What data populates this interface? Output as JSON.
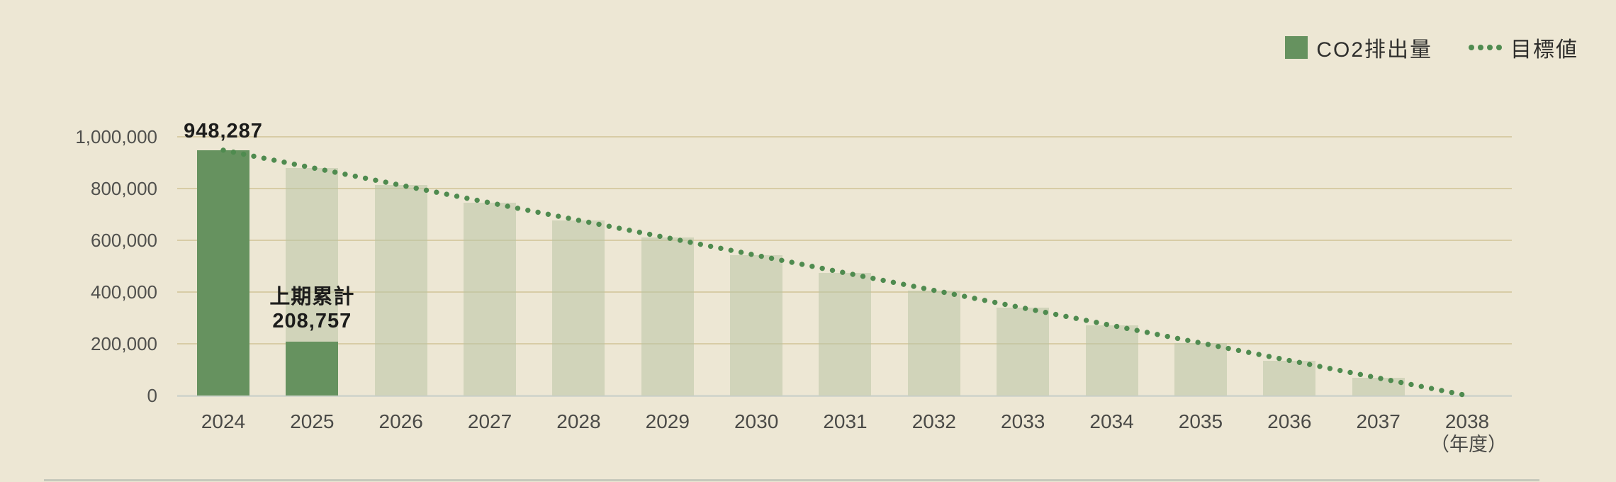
{
  "page": {
    "background": "#EDE7D4"
  },
  "legend": {
    "items": [
      {
        "label": "CO2排出量",
        "swatch": "square",
        "color": "#66925F"
      },
      {
        "label": "目標値",
        "swatch": "dotted-line",
        "color": "#4F8B4F"
      }
    ]
  },
  "chart_data": {
    "type": "bar",
    "title": "",
    "xlabel": "",
    "ylabel": "",
    "x_axis_unit_label": "（年度）",
    "categories": [
      "2024",
      "2025",
      "2026",
      "2027",
      "2028",
      "2029",
      "2030",
      "2031",
      "2032",
      "2033",
      "2034",
      "2035",
      "2036",
      "2037",
      "2038"
    ],
    "ylim": [
      0,
      1000000
    ],
    "y_ticks": [
      {
        "label": "1,000,000",
        "value": 1000000
      },
      {
        "label": "800,000",
        "value": 800000
      },
      {
        "label": "600,000",
        "value": 600000
      },
      {
        "label": "400,000",
        "value": 400000
      },
      {
        "label": "200,000",
        "value": 200000
      },
      {
        "label": "0",
        "value": 0
      }
    ],
    "grid": true,
    "legend_position": "top-right",
    "series": [
      {
        "name": "CO2排出量",
        "type": "bar",
        "color": "#66925F",
        "values": [
          948287,
          208757,
          null,
          null,
          null,
          null,
          null,
          null,
          null,
          null,
          null,
          null,
          null,
          null,
          null
        ],
        "note_2025": "上期累計 (first-half cumulative)"
      },
      {
        "name": "目標値",
        "type": "dotted-line",
        "color": "#4F8B4F",
        "light_bar_color": "rgba(185,196,164,0.55)",
        "values": [
          948287,
          880552,
          812817,
          745083,
          677348,
          609613,
          541878,
          474144,
          406409,
          338674,
          270939,
          203204,
          135470,
          67735,
          0
        ],
        "values_estimated_from_linear_decline": true,
        "light_bars_from_index": 1,
        "light_bars_to_index": 13
      }
    ],
    "annotations": [
      {
        "category_index": 0,
        "lines": [
          "948,287"
        ],
        "placement": "above-bar"
      },
      {
        "category_index": 1,
        "lines": [
          "上期累計",
          "208,757"
        ],
        "placement": "above-segment"
      }
    ]
  }
}
